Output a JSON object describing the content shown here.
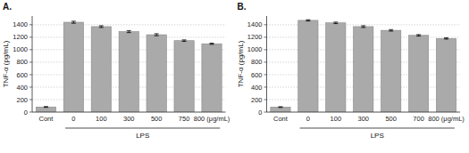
{
  "chart_data": [
    {
      "type": "bar",
      "title": "A.",
      "ylabel": "TNF-α (pg/mL)",
      "xlabel": "LPS",
      "categories": [
        "Cont",
        "0",
        "100",
        "300",
        "500",
        "750",
        "800 (μg/mL)"
      ],
      "values": [
        82,
        1440,
        1370,
        1290,
        1240,
        1145,
        1095
      ],
      "errors": [
        6,
        16,
        14,
        16,
        16,
        12,
        10
      ],
      "ylim": [
        0,
        1540
      ],
      "yticks": [
        0,
        200,
        400,
        600,
        800,
        1000,
        1200,
        1400
      ],
      "color": "#aaaaaa",
      "grid": true
    },
    {
      "type": "bar",
      "title": "B.",
      "ylabel": "TNF-α (pg/mL)",
      "xlabel": "LPS",
      "categories": [
        "Cont",
        "0",
        "100",
        "300",
        "500",
        "700",
        "800 (μg/mL)"
      ],
      "values": [
        80,
        1470,
        1430,
        1370,
        1310,
        1230,
        1180
      ],
      "errors": [
        6,
        10,
        12,
        14,
        12,
        12,
        10
      ],
      "ylim": [
        0,
        1540
      ],
      "yticks": [
        0,
        200,
        400,
        600,
        800,
        1000,
        1200,
        1400
      ],
      "color": "#aaaaaa",
      "grid": true
    }
  ]
}
